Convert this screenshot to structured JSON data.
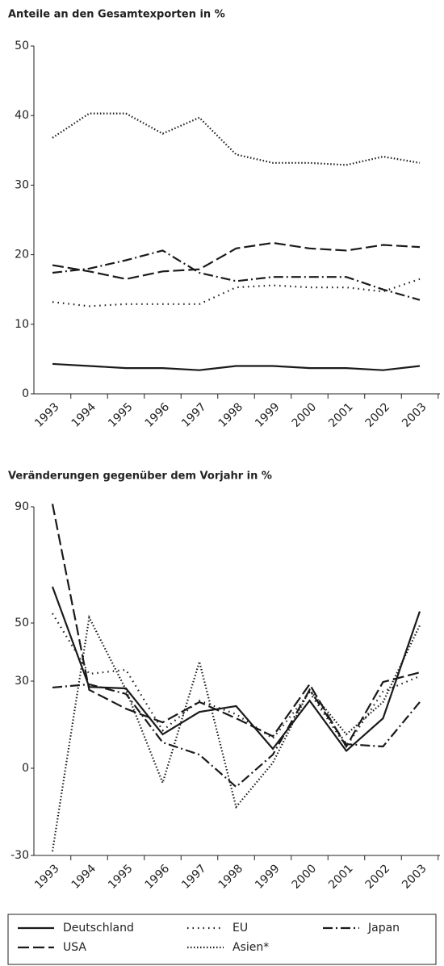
{
  "chart_data": [
    {
      "type": "line",
      "title": "Anteile an den Gesamtexporten in %",
      "categories": [
        "1993",
        "1994",
        "1995",
        "1996",
        "1997",
        "1998",
        "1999",
        "2000",
        "2001",
        "2002",
        "2003"
      ],
      "ylim": [
        0,
        50
      ],
      "yticks": [
        0,
        10,
        20,
        30,
        40,
        50
      ],
      "series": [
        {
          "style": "solid",
          "color": "#1a1a1a",
          "values": [
            4.3,
            4.0,
            3.7,
            3.7,
            3.4,
            4.0,
            4.0,
            3.7,
            3.7,
            3.4,
            4.0
          ]
        },
        {
          "style": "dot",
          "color": "#1a1a1a",
          "values": [
            13.2,
            12.6,
            12.9,
            12.9,
            12.9,
            15.3,
            15.6,
            15.3,
            15.3,
            14.7,
            16.5
          ]
        },
        {
          "style": "dashdot",
          "color": "#1a1a1a",
          "values": [
            17.4,
            18.0,
            19.2,
            20.6,
            17.4,
            16.2,
            16.8,
            16.8,
            16.8,
            15.0,
            13.5
          ]
        },
        {
          "style": "dash",
          "color": "#1a1a1a",
          "values": [
            18.5,
            17.6,
            16.5,
            17.6,
            17.9,
            20.9,
            21.7,
            20.9,
            20.6,
            21.4,
            21.1
          ]
        },
        {
          "style": "densedot",
          "color": "#1a1a1a",
          "values": [
            36.8,
            40.3,
            40.3,
            37.4,
            39.7,
            34.4,
            33.2,
            33.2,
            32.9,
            34.1,
            33.2
          ]
        }
      ]
    },
    {
      "type": "line",
      "title": "Veränderungen gegenüber dem Vorjahr in %",
      "categories": [
        "1993",
        "1994",
        "1995",
        "1996",
        "1997",
        "1998",
        "1999",
        "2000",
        "2001",
        "2002",
        "2003"
      ],
      "ylim": [
        -30,
        90
      ],
      "yticks": [
        -30,
        0,
        30,
        50,
        90
      ],
      "legend": "bottom",
      "series": [
        {
          "name": "Deutschland",
          "style": "solid",
          "color": "#1a1a1a",
          "values": [
            62.5,
            28,
            27.5,
            11.7,
            19.4,
            21.4,
            6.7,
            23.3,
            6,
            17.2,
            54
          ]
        },
        {
          "name": "EU",
          "style": "dot",
          "color": "#1a1a1a",
          "values": [
            53.3,
            32.5,
            33.9,
            13,
            23.3,
            18.6,
            10.3,
            26.1,
            7.5,
            26.4,
            31.7
          ]
        },
        {
          "name": "Japan",
          "style": "dashdot",
          "color": "#1a1a1a",
          "values": [
            27.8,
            28.9,
            25.6,
            8.9,
            4.7,
            -6.4,
            4.7,
            27,
            8.3,
            7.5,
            22.8
          ]
        },
        {
          "name": "USA",
          "style": "dash",
          "color": "#1a1a1a",
          "values": [
            91,
            27,
            20.5,
            15.8,
            22.8,
            17.2,
            11,
            28.9,
            7.5,
            29.7,
            33
          ]
        },
        {
          "name": "Asien*",
          "style": "densedot",
          "color": "#1a1a1a",
          "values": [
            -28.6,
            51.9,
            27,
            -5,
            36.7,
            -13.3,
            1.9,
            27,
            11.7,
            22.8,
            49.2
          ]
        }
      ]
    }
  ]
}
